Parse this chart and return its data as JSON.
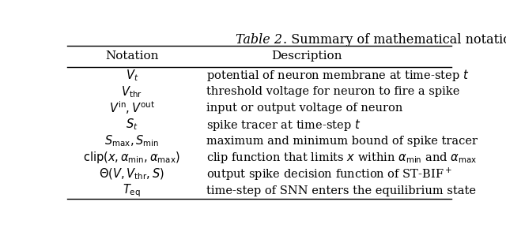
{
  "title_italic": "Table 2",
  "title_rest": ". Summary of mathematical notations used in this paper.",
  "col_header_notation": "Notation",
  "col_header_description": "Description",
  "rows": [
    {
      "notation": "$V_t$",
      "description": "potential of neuron membrane at time-step $t$"
    },
    {
      "notation": "$V_{\\mathrm{thr}}$",
      "description": "threshold voltage for neuron to fire a spike"
    },
    {
      "notation": "$V^{\\mathrm{in}}, V^{\\mathrm{out}}$",
      "description": "input or output voltage of neuron"
    },
    {
      "notation": "$S_t$",
      "description": "spike tracer at time-step $t$"
    },
    {
      "notation": "$S_{\\mathrm{max}}, S_{\\mathrm{min}}$",
      "description": "maximum and minimum bound of spike tracer"
    },
    {
      "notation": "$\\mathrm{clip}(x, \\alpha_{\\mathrm{min}}, \\alpha_{\\mathrm{max}})$",
      "description": "clip function that limits $x$ within $\\alpha_{\\mathrm{min}}$ and $\\alpha_{\\mathrm{max}}$"
    },
    {
      "notation": "$\\Theta(V, V_{\\mathrm{thr}}, S)$",
      "description": "output spike decision function of ST-BIF$^+$"
    },
    {
      "notation": "$T_{\\mathrm{eq}}$",
      "description": "time-step of SNN enters the equilibrium state"
    }
  ],
  "bg_color": "#ffffff",
  "text_color": "#000000",
  "line_color": "#000000",
  "title_fontsize": 11.5,
  "header_fontsize": 11,
  "body_fontsize": 10.5,
  "fig_width": 6.4,
  "fig_height": 2.89
}
